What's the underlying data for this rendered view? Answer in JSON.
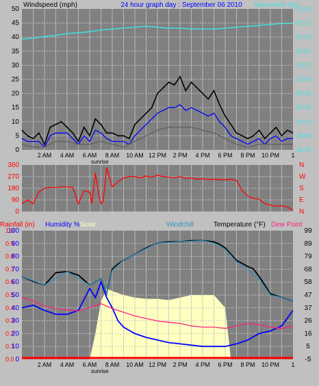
{
  "top_panel": {
    "title_left": "Windspeed (mph)",
    "title_center": "24 hour graph day : September 06 2010",
    "title_right": "Barometer (in)",
    "left_ticks": [
      "0",
      "5",
      "10",
      "15",
      "20",
      "25",
      "30",
      "35",
      "40",
      "45",
      "50"
    ],
    "right_ticks": [
      "28.79",
      "28.95",
      "29.10",
      "29.25",
      "29.41",
      "29.56",
      "29.71",
      "29.87",
      "30.02",
      "30.17",
      "30.33"
    ]
  },
  "mid_panel": {
    "left_ticks": [
      "0",
      "90",
      "180",
      "270",
      "360"
    ],
    "right_letters": [
      "N",
      "E",
      "S",
      "W",
      "N"
    ]
  },
  "bottom_panel": {
    "labels": {
      "rain": "Rainfall (in)",
      "humidity": "Humidity %",
      "solar": "Solar",
      "windchill": "Windchill",
      "temperature": "Temperature (°F)",
      "dewpoint": "Dew Point"
    },
    "rain_ticks": [
      "0.0",
      "0.1",
      "0.2",
      "0.3",
      "0.4",
      "0.5",
      "0.6",
      "0.7",
      "0.8",
      "0.9",
      "1.0"
    ],
    "humidity_ticks": [
      "0",
      "10",
      "20",
      "30",
      "40",
      "50",
      "60",
      "70",
      "80",
      "90",
      "100"
    ],
    "temp_ticks": [
      "-5",
      "5",
      "16",
      "26",
      "37",
      "47",
      "58",
      "68",
      "79",
      "89",
      "99"
    ]
  },
  "x_axis": {
    "hour_labels": [
      "2 AM",
      "4 AM",
      "6 AM",
      "8 AM",
      "10 AM",
      "12 PM",
      "2 PM",
      "4 PM",
      "6 PM",
      "8 PM",
      "10 PM",
      "1"
    ],
    "sunrise_label": "sunrise"
  },
  "colors": {
    "bg": "#c0c0c0",
    "plot": "#808080",
    "grid": "#c8c8c8",
    "gust": "#000000",
    "wind_avg": "#0000ff",
    "wind_gray": "#606060",
    "barometer": "#40e0e0",
    "direction": "#ff0000",
    "temperature": "#000000",
    "windchill": "#3090c0",
    "humidity": "#0000ff",
    "dewpoint": "#ff2080",
    "solar": "#ffffc0",
    "rain": "#ff0000"
  },
  "chart_data": [
    {
      "type": "line",
      "name": "wind",
      "ylim": [
        0,
        50
      ],
      "y2lim": [
        28.79,
        30.33
      ],
      "series": [
        {
          "name": "gust",
          "color": "#000000",
          "x": [
            0,
            0.5,
            1,
            1.5,
            2,
            2.5,
            3,
            3.5,
            4,
            4.5,
            5,
            5.5,
            6,
            6.5,
            7,
            7.5,
            8,
            8.5,
            9,
            9.5,
            10,
            10.5,
            11,
            11.5,
            12,
            12.5,
            13,
            13.5,
            14,
            14.5,
            15,
            15.5,
            16,
            16.5,
            17,
            17.5,
            18,
            18.5,
            19,
            19.5,
            20,
            20.5,
            21,
            21.5,
            22,
            22.5,
            23,
            23.5,
            24
          ],
          "values": [
            7,
            5,
            4,
            6,
            2,
            8,
            9,
            10,
            8,
            6,
            3,
            8,
            5,
            11,
            9,
            6,
            6,
            5,
            5,
            4,
            9,
            11,
            13,
            15,
            20,
            22,
            24,
            23,
            26,
            21,
            24,
            22,
            20,
            18,
            21,
            16,
            12,
            9,
            6,
            5,
            4,
            5,
            7,
            4,
            6,
            8,
            5,
            7,
            6
          ]
        },
        {
          "name": "avg",
          "color": "#0000ff",
          "x": [
            0,
            0.5,
            1,
            1.5,
            2,
            2.5,
            3,
            3.5,
            4,
            4.5,
            5,
            5.5,
            6,
            6.5,
            7,
            7.5,
            8,
            8.5,
            9,
            9.5,
            10,
            10.5,
            11,
            11.5,
            12,
            12.5,
            13,
            13.5,
            14,
            14.5,
            15,
            15.5,
            16,
            16.5,
            17,
            17.5,
            18,
            18.5,
            19,
            19.5,
            20,
            20.5,
            21,
            21.5,
            22,
            22.5,
            23,
            23.5,
            24
          ],
          "values": [
            4,
            3,
            3,
            3,
            1,
            5,
            6,
            6,
            6,
            4,
            2,
            5,
            3,
            7,
            6,
            4,
            3,
            3,
            3,
            2,
            5,
            7,
            9,
            11,
            13,
            14,
            15,
            15,
            16,
            14,
            15,
            14,
            13,
            12,
            13,
            10,
            8,
            5,
            4,
            3,
            2,
            3,
            4,
            2,
            4,
            5,
            3,
            4,
            4
          ]
        },
        {
          "name": "baseline",
          "color": "#606060",
          "x": [
            0,
            1,
            2,
            3,
            4,
            5,
            6,
            7,
            8,
            9,
            10,
            11,
            12,
            13,
            14,
            15,
            16,
            17,
            18,
            19,
            20,
            21,
            22,
            23,
            24
          ],
          "values": [
            2,
            1,
            1,
            3,
            3,
            2,
            2,
            3,
            2,
            1,
            3,
            5,
            7,
            8,
            8,
            8,
            7,
            6,
            4,
            2,
            1,
            2,
            2,
            2,
            2
          ]
        },
        {
          "name": "barometer",
          "color": "#40e0e0",
          "axis": "right",
          "x": [
            0,
            1,
            2,
            3,
            4,
            5,
            6,
            7,
            8,
            9,
            10,
            11,
            12,
            13,
            14,
            15,
            16,
            17,
            18,
            19,
            20,
            21,
            22,
            23,
            24
          ],
          "values": [
            30.0,
            30.01,
            30.03,
            30.04,
            30.06,
            30.07,
            30.08,
            30.1,
            30.11,
            30.12,
            30.13,
            30.14,
            30.13,
            30.12,
            30.12,
            30.11,
            30.11,
            30.11,
            30.12,
            30.13,
            30.14,
            30.15,
            30.16,
            30.17,
            30.17
          ]
        }
      ]
    },
    {
      "type": "line",
      "name": "direction",
      "ylim": [
        0,
        360
      ],
      "series": [
        {
          "name": "direction",
          "color": "#ff0000",
          "x": [
            0,
            0.5,
            1,
            1.5,
            2,
            2.5,
            3,
            3.5,
            4,
            4.5,
            5,
            5.5,
            6,
            6.2,
            6.5,
            6.8,
            7,
            7.2,
            7.5,
            8,
            8.5,
            9,
            9.5,
            10,
            10.5,
            11,
            11.5,
            12,
            12.5,
            13,
            13.5,
            14,
            14.5,
            15,
            15.5,
            16,
            16.5,
            17,
            17.5,
            18,
            18.5,
            19,
            19.5,
            20,
            20.5,
            21,
            21.5,
            22,
            22.5,
            23,
            23.5,
            24
          ],
          "values": [
            60,
            90,
            60,
            150,
            180,
            185,
            185,
            190,
            190,
            185,
            60,
            160,
            150,
            60,
            300,
            130,
            60,
            80,
            340,
            190,
            230,
            260,
            270,
            270,
            260,
            275,
            265,
            280,
            270,
            265,
            260,
            270,
            255,
            260,
            250,
            255,
            245,
            250,
            245,
            245,
            250,
            240,
            160,
            120,
            100,
            95,
            60,
            50,
            40,
            45,
            35,
            10
          ]
        }
      ]
    },
    {
      "type": "line",
      "name": "temperature_humidity",
      "ylim": [
        -5,
        99
      ],
      "series": [
        {
          "name": "temperature",
          "color": "#000000",
          "x": [
            0,
            1,
            2,
            3,
            4,
            5,
            6,
            7,
            7.5,
            8,
            8.5,
            9,
            10,
            11,
            12,
            13,
            14,
            15,
            16,
            17,
            17.5,
            18,
            18.5,
            19,
            20,
            20.5,
            21,
            21.5,
            22,
            23,
            24
          ],
          "values": [
            62,
            58,
            55,
            65,
            66,
            63,
            55,
            60,
            48,
            68,
            72,
            75,
            80,
            85,
            89,
            90,
            90,
            91,
            91,
            90,
            88,
            85,
            80,
            75,
            70,
            68,
            62,
            55,
            48,
            45,
            42
          ]
        },
        {
          "name": "windchill",
          "color": "#3090c0",
          "x": [
            0,
            2,
            4,
            6,
            7,
            7.5,
            8,
            9,
            10,
            12,
            14,
            16,
            17,
            18,
            19,
            20,
            21,
            22,
            23,
            24
          ],
          "values": [
            62,
            55,
            66,
            55,
            60,
            48,
            67,
            75,
            80,
            89,
            90,
            91,
            89,
            84,
            74,
            68,
            60,
            47,
            45,
            42
          ]
        },
        {
          "name": "humidity",
          "color": "#0000ff",
          "axis": "humidity",
          "x": [
            0,
            1,
            2,
            3,
            4,
            5,
            6,
            6.5,
            7,
            7.5,
            8,
            8.5,
            9,
            10,
            11,
            12,
            13,
            14,
            15,
            16,
            17,
            18,
            19,
            20,
            21,
            22,
            23,
            24
          ],
          "values": [
            40,
            42,
            38,
            35,
            35,
            38,
            55,
            48,
            60,
            48,
            40,
            30,
            25,
            20,
            17,
            15,
            13,
            12,
            11,
            10,
            10,
            10,
            12,
            15,
            20,
            22,
            26,
            38
          ]
        },
        {
          "name": "dewpoint",
          "color": "#ff2080",
          "x": [
            0,
            1,
            2,
            3,
            4,
            5,
            6,
            7,
            8,
            9,
            10,
            11,
            12,
            13,
            14,
            15,
            16,
            17,
            18,
            19,
            20,
            21,
            22,
            23,
            24
          ],
          "values": [
            45,
            42,
            38,
            36,
            35,
            34,
            37,
            40,
            36,
            33,
            30,
            28,
            26,
            25,
            24,
            22,
            21,
            21,
            20,
            22,
            24,
            23,
            21,
            20,
            22
          ]
        },
        {
          "name": "solar",
          "color": "#ffffc0",
          "axis": "humidity",
          "x": [
            6,
            6.5,
            7,
            7.5,
            8,
            9,
            10,
            11,
            12,
            13,
            14,
            15,
            16,
            17,
            18,
            18.5
          ],
          "values": [
            0,
            20,
            45,
            55,
            53,
            50,
            48,
            47,
            47,
            46,
            48,
            50,
            50,
            50,
            40,
            0
          ]
        },
        {
          "name": "rain",
          "color": "#ff0000",
          "axis": "rain",
          "x": [
            0,
            24
          ],
          "values": [
            0,
            0
          ]
        }
      ]
    }
  ]
}
